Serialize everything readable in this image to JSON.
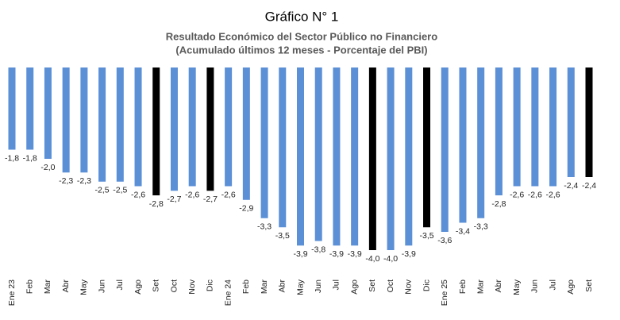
{
  "chart_data": {
    "type": "bar",
    "title": "Gráfico N° 1",
    "subtitle": [
      "Resultado Económico del Sector Público no Financiero",
      "(Acumulado últimos 12 meses - Porcentaje del PBI)"
    ],
    "categories": [
      "Ene 23",
      "Feb",
      "Mar",
      "Abr",
      "May",
      "Jun",
      "Jul",
      "Ago",
      "Set",
      "Oct",
      "Nov",
      "Dic",
      "Ene 24",
      "Feb",
      "Mar",
      "Abr",
      "May",
      "Jun",
      "Jul",
      "Ago",
      "Set",
      "Oct",
      "Nov",
      "Dic",
      "Ene 25",
      "Feb",
      "Mar",
      "Abr",
      "May",
      "Jun",
      "Jul",
      "Ago",
      "Set"
    ],
    "values": [
      -1.8,
      -1.8,
      -2.0,
      -2.3,
      -2.3,
      -2.5,
      -2.5,
      -2.6,
      -2.8,
      -2.7,
      -2.6,
      -2.7,
      -2.6,
      -2.9,
      -3.3,
      -3.5,
      -3.9,
      -3.8,
      -3.9,
      -3.9,
      -4.0,
      -4.0,
      -3.9,
      -3.5,
      -3.6,
      -3.4,
      -3.3,
      -2.8,
      -2.6,
      -2.6,
      -2.6,
      -2.4,
      -2.4
    ],
    "value_labels": [
      "-1,8",
      "-1,8",
      "-2,0",
      "-2,3",
      "-2,3",
      "-2,5",
      "-2,5",
      "-2,6",
      "-2,8",
      "-2,7",
      "-2,6",
      "-2,7",
      "-2,6",
      "-2,9",
      "-3,3",
      "-3,5",
      "-3,9",
      "-3,8",
      "-3,9",
      "-3,9",
      "-4,0",
      "-4,0",
      "-3,9",
      "-3,5",
      "-3,6",
      "-3,4",
      "-3,3",
      "-2,8",
      "-2,6",
      "-2,6",
      "-2,6",
      "-2,4",
      "-2,4"
    ],
    "colors": [
      "#5b8fd6",
      "#5b8fd6",
      "#5b8fd6",
      "#5b8fd6",
      "#5b8fd6",
      "#5b8fd6",
      "#5b8fd6",
      "#5b8fd6",
      "#000000",
      "#5b8fd6",
      "#5b8fd6",
      "#000000",
      "#5b8fd6",
      "#5b8fd6",
      "#5b8fd6",
      "#5b8fd6",
      "#5b8fd6",
      "#5b8fd6",
      "#5b8fd6",
      "#5b8fd6",
      "#000000",
      "#5b8fd6",
      "#5b8fd6",
      "#000000",
      "#5b8fd6",
      "#5b8fd6",
      "#5b8fd6",
      "#5b8fd6",
      "#5b8fd6",
      "#5b8fd6",
      "#5b8fd6",
      "#5b8fd6",
      "#000000"
    ]
  }
}
